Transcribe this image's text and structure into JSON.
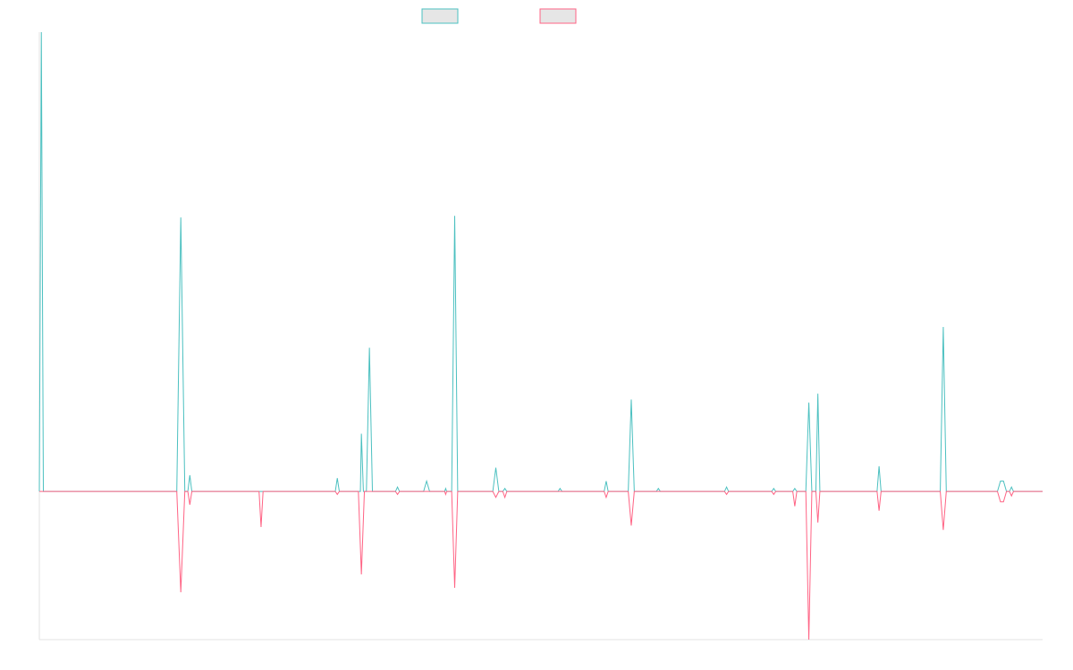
{
  "chart_data": {
    "type": "line",
    "title": "",
    "xlabel": "",
    "ylabel": "",
    "legend_position": "top-center",
    "grid": false,
    "xlim": [
      0,
      100
    ],
    "ylim": [
      -1.0,
      3.1
    ],
    "series": [
      {
        "color": "#4bc0c0",
        "fill": "#e6e6e6",
        "points": [
          [
            0,
            0
          ],
          [
            0.2,
            3.1
          ],
          [
            0.4,
            0
          ],
          [
            13.7,
            0
          ],
          [
            14.1,
            1.85
          ],
          [
            14.5,
            0
          ],
          [
            14.8,
            0
          ],
          [
            15.0,
            0.11
          ],
          [
            15.2,
            0
          ],
          [
            29.5,
            0
          ],
          [
            29.7,
            0.09
          ],
          [
            29.9,
            0
          ],
          [
            32.0,
            0
          ],
          [
            32.1,
            0.39
          ],
          [
            32.3,
            0
          ],
          [
            32.6,
            0
          ],
          [
            32.9,
            0.97
          ],
          [
            33.2,
            0
          ],
          [
            35.5,
            0
          ],
          [
            35.7,
            0.03
          ],
          [
            35.9,
            0
          ],
          [
            38.3,
            0
          ],
          [
            38.6,
            0.07
          ],
          [
            38.9,
            0
          ],
          [
            40.4,
            0
          ],
          [
            40.5,
            0.02
          ],
          [
            40.6,
            0
          ],
          [
            41.1,
            0
          ],
          [
            41.4,
            1.86
          ],
          [
            41.7,
            0
          ],
          [
            45.2,
            0
          ],
          [
            45.5,
            0.16
          ],
          [
            45.8,
            0
          ],
          [
            46.2,
            0
          ],
          [
            46.4,
            0.02
          ],
          [
            46.6,
            0
          ],
          [
            51.7,
            0
          ],
          [
            51.9,
            0.02
          ],
          [
            52.1,
            0
          ],
          [
            56.3,
            0
          ],
          [
            56.5,
            0.07
          ],
          [
            56.7,
            0
          ],
          [
            58.7,
            0
          ],
          [
            59.0,
            0.62
          ],
          [
            59.3,
            0
          ],
          [
            61.5,
            0
          ],
          [
            61.7,
            0.02
          ],
          [
            61.9,
            0
          ],
          [
            68.3,
            0
          ],
          [
            68.5,
            0.03
          ],
          [
            68.7,
            0
          ],
          [
            73.0,
            0
          ],
          [
            73.2,
            0.02
          ],
          [
            73.4,
            0
          ],
          [
            75.1,
            0
          ],
          [
            75.3,
            0.02
          ],
          [
            75.5,
            0
          ],
          [
            76.4,
            0
          ],
          [
            76.7,
            0.6
          ],
          [
            77.0,
            0
          ],
          [
            77.4,
            0
          ],
          [
            77.6,
            0.66
          ],
          [
            77.8,
            0
          ],
          [
            83.5,
            0
          ],
          [
            83.7,
            0.17
          ],
          [
            83.9,
            0
          ],
          [
            89.8,
            0
          ],
          [
            90.1,
            1.11
          ],
          [
            90.4,
            0
          ],
          [
            95.5,
            0
          ],
          [
            95.8,
            0.07
          ],
          [
            96.1,
            0.07
          ],
          [
            96.4,
            0
          ],
          [
            96.7,
            0
          ],
          [
            96.9,
            0.03
          ],
          [
            97.1,
            0
          ],
          [
            100,
            0
          ]
        ]
      },
      {
        "color": "#ff6384",
        "fill": "#e6e6e6",
        "points": [
          [
            0,
            0
          ],
          [
            13.7,
            0
          ],
          [
            14.1,
            -0.68
          ],
          [
            14.5,
            0
          ],
          [
            14.8,
            0
          ],
          [
            15.0,
            -0.09
          ],
          [
            15.2,
            0
          ],
          [
            21.9,
            0
          ],
          [
            22.1,
            -0.24
          ],
          [
            22.3,
            0
          ],
          [
            29.5,
            0
          ],
          [
            29.7,
            -0.02
          ],
          [
            29.9,
            0
          ],
          [
            31.8,
            0
          ],
          [
            32.1,
            -0.56
          ],
          [
            32.4,
            0
          ],
          [
            35.5,
            0
          ],
          [
            35.7,
            -0.02
          ],
          [
            35.9,
            0
          ],
          [
            40.4,
            0
          ],
          [
            40.5,
            -0.02
          ],
          [
            40.6,
            0
          ],
          [
            41.1,
            0
          ],
          [
            41.4,
            -0.65
          ],
          [
            41.7,
            0
          ],
          [
            45.2,
            0
          ],
          [
            45.5,
            -0.04
          ],
          [
            45.8,
            0
          ],
          [
            46.2,
            0
          ],
          [
            46.4,
            -0.04
          ],
          [
            46.6,
            0
          ],
          [
            56.3,
            0
          ],
          [
            56.5,
            -0.04
          ],
          [
            56.7,
            0
          ],
          [
            58.7,
            0
          ],
          [
            59.0,
            -0.23
          ],
          [
            59.3,
            0
          ],
          [
            68.3,
            0
          ],
          [
            68.5,
            -0.02
          ],
          [
            68.7,
            0
          ],
          [
            73.0,
            0
          ],
          [
            73.2,
            -0.02
          ],
          [
            73.4,
            0
          ],
          [
            75.1,
            0
          ],
          [
            75.3,
            -0.1
          ],
          [
            75.5,
            0
          ],
          [
            76.4,
            0
          ],
          [
            76.7,
            -1.0
          ],
          [
            77.0,
            0
          ],
          [
            77.4,
            0
          ],
          [
            77.6,
            -0.21
          ],
          [
            77.8,
            0
          ],
          [
            83.5,
            0
          ],
          [
            83.7,
            -0.13
          ],
          [
            83.9,
            0
          ],
          [
            89.8,
            0
          ],
          [
            90.1,
            -0.26
          ],
          [
            90.4,
            0
          ],
          [
            95.5,
            0
          ],
          [
            95.8,
            -0.07
          ],
          [
            96.1,
            -0.07
          ],
          [
            96.4,
            0
          ],
          [
            96.7,
            0
          ],
          [
            96.9,
            -0.03
          ],
          [
            97.1,
            0
          ],
          [
            100,
            0
          ]
        ]
      }
    ]
  }
}
